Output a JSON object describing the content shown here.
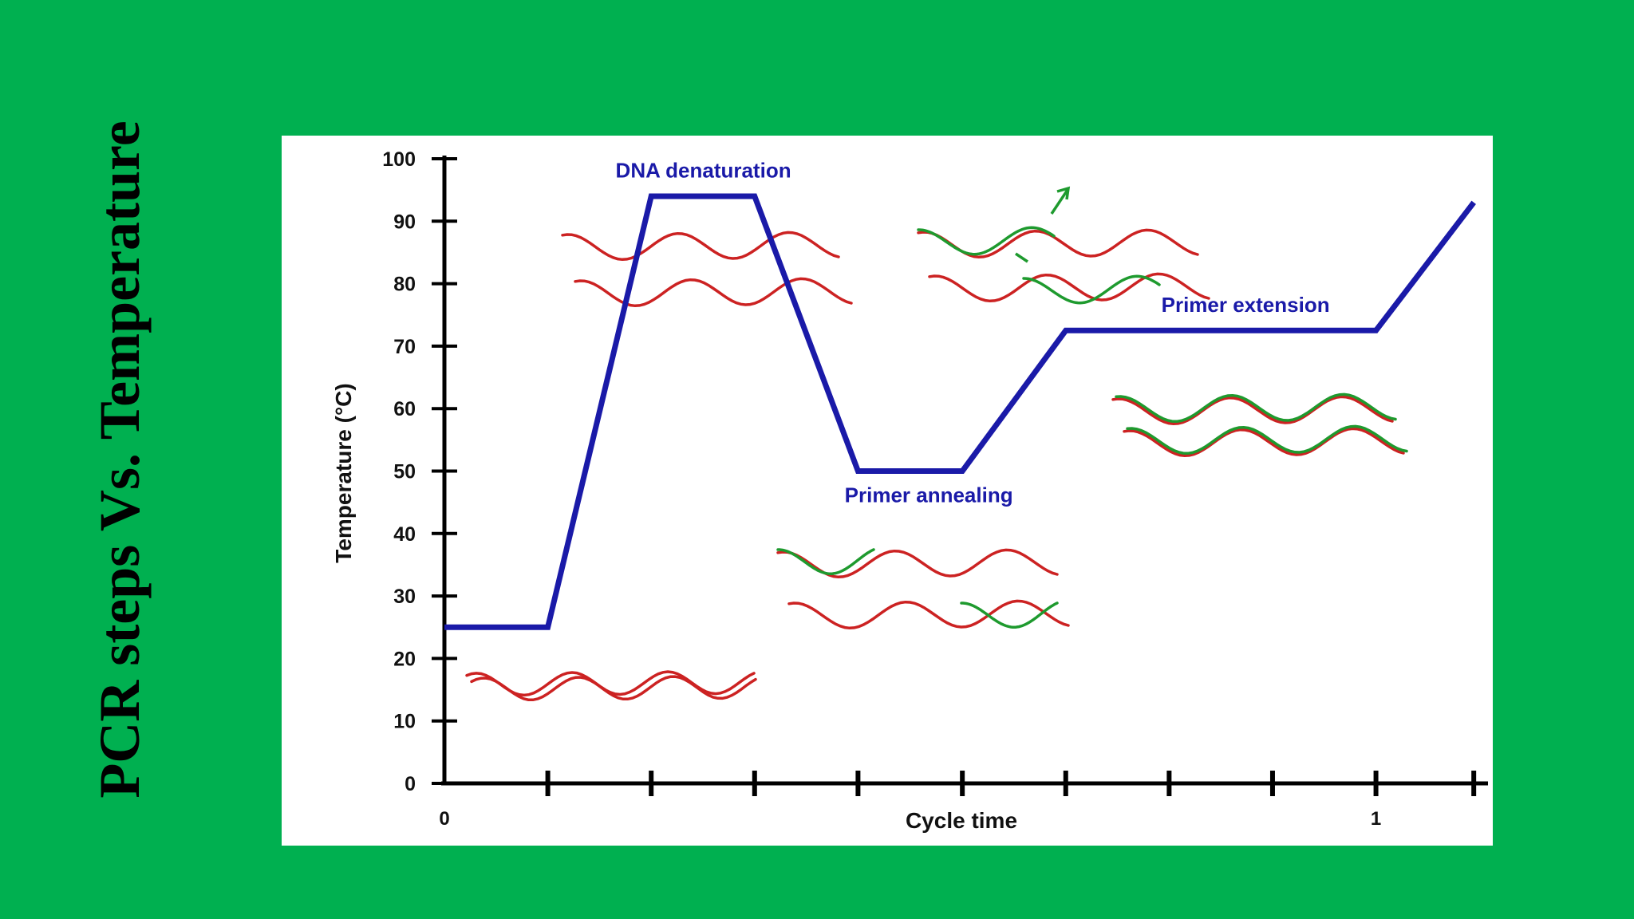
{
  "slide": {
    "title": "PCR steps Vs. Temperature",
    "background_color": "#00b050"
  },
  "chart_data": {
    "type": "line",
    "title": "",
    "xlabel": "Cycle time",
    "ylabel": "Temperature (°C)",
    "ylim": [
      0,
      100
    ],
    "yticks": [
      "0",
      "10",
      "20",
      "30",
      "40",
      "50",
      "60",
      "70",
      "80",
      "90",
      "100"
    ],
    "xlim": [
      0,
      1.11
    ],
    "xtick_labels": [
      {
        "x": 0,
        "label": "0"
      },
      {
        "x": 1,
        "label": "1"
      }
    ],
    "xticks_unlabeled": [
      0.111,
      0.222,
      0.333,
      0.444,
      0.556,
      0.667,
      0.778,
      0.889
    ],
    "grid": false,
    "series": [
      {
        "color": "#1a1aa8",
        "points": [
          [
            0.0,
            25
          ],
          [
            0.111,
            25
          ],
          [
            0.222,
            94
          ],
          [
            0.333,
            94
          ],
          [
            0.444,
            50
          ],
          [
            0.556,
            50
          ],
          [
            0.667,
            72.5
          ],
          [
            1.0,
            72.5
          ],
          [
            1.105,
            93
          ]
        ]
      }
    ],
    "annotations": [
      {
        "text": "DNA denaturation",
        "x": 0.278,
        "y": 97,
        "color": "#1a1aa8"
      },
      {
        "text": "Primer annealing",
        "x": 0.52,
        "y": 45,
        "color": "#1a1aa8"
      },
      {
        "text": "Primer extension",
        "x": 0.86,
        "y": 75.5,
        "color": "#1a1aa8"
      }
    ],
    "dna_illustrations": [
      {
        "stage": "initial",
        "strands": [
          "red",
          "red"
        ]
      },
      {
        "stage": "denaturation",
        "strands": [
          "red",
          "red"
        ]
      },
      {
        "stage": "annealing",
        "strands": [
          "red",
          "green",
          "red",
          "green"
        ]
      },
      {
        "stage": "extension",
        "strands": [
          "red",
          "green",
          "red",
          "green"
        ]
      },
      {
        "stage": "extension-complete",
        "strands": [
          "red",
          "green",
          "red",
          "green"
        ]
      }
    ],
    "colors": {
      "curve": "#1a1aa8",
      "template_strand": "#cc2222",
      "primer_strand": "#1e9a2e",
      "axis": "#000000"
    }
  }
}
